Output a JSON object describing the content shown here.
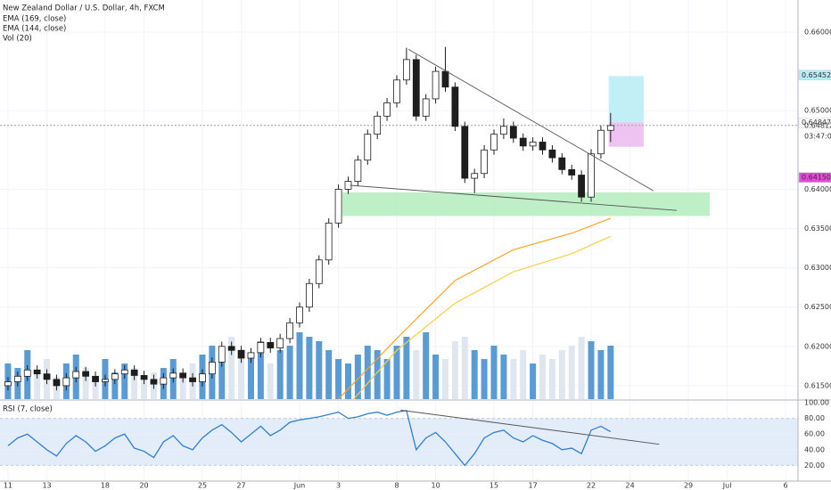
{
  "chart_data": [
    {
      "type": "candlestick",
      "title": "New Zealand Dollar / U.S. Dollar, 4h, FXCM",
      "indicators": [
        "Vol (20)"
      ],
      "x": [
        0,
        0.5,
        1,
        1.5,
        2,
        2.5,
        3,
        3.5,
        4,
        4.5,
        5,
        5.5,
        6,
        6.5,
        7,
        7.5,
        8,
        8.5,
        9,
        9.5,
        10,
        10.5,
        11,
        11.5,
        12,
        12.5,
        13,
        13.5,
        14,
        14.5,
        15,
        15.5,
        16,
        16.5,
        17,
        17.5,
        18,
        18.5,
        19,
        19.5,
        20,
        20.5,
        21,
        21.5,
        22,
        22.5,
        23,
        23.5,
        24,
        24.5,
        25,
        25.5,
        26,
        26.5,
        27,
        27.5,
        28,
        28.5,
        29,
        29.5,
        30,
        30.5,
        31
      ],
      "open": [
        0.615,
        0.6155,
        0.6162,
        0.617,
        0.6165,
        0.6158,
        0.615,
        0.616,
        0.6168,
        0.6162,
        0.6155,
        0.6158,
        0.6165,
        0.617,
        0.6163,
        0.6158,
        0.6152,
        0.616,
        0.6166,
        0.616,
        0.6155,
        0.6165,
        0.618,
        0.62,
        0.6195,
        0.6185,
        0.6192,
        0.6205,
        0.6198,
        0.621,
        0.623,
        0.625,
        0.628,
        0.631,
        0.6357,
        0.64,
        0.641,
        0.6437,
        0.647,
        0.6493,
        0.651,
        0.6539,
        0.6565,
        0.6493,
        0.6515,
        0.655,
        0.653,
        0.648,
        0.6414,
        0.642,
        0.645,
        0.647,
        0.648,
        0.6465,
        0.6455,
        0.646,
        0.645,
        0.644,
        0.6425,
        0.6418,
        0.639,
        0.6445,
        0.6475
      ],
      "high": [
        0.6161,
        0.6168,
        0.6176,
        0.6176,
        0.6171,
        0.6164,
        0.6166,
        0.6174,
        0.6174,
        0.6168,
        0.6164,
        0.6171,
        0.6176,
        0.6176,
        0.6169,
        0.6164,
        0.6166,
        0.6172,
        0.6172,
        0.6166,
        0.6171,
        0.6186,
        0.6206,
        0.6206,
        0.6201,
        0.6198,
        0.6211,
        0.6211,
        0.6216,
        0.6236,
        0.6256,
        0.6286,
        0.6316,
        0.6363,
        0.6406,
        0.6416,
        0.6443,
        0.6476,
        0.6499,
        0.6516,
        0.6545,
        0.658,
        0.6571,
        0.6521,
        0.6556,
        0.6581,
        0.6536,
        0.6486,
        0.6426,
        0.6456,
        0.6476,
        0.649,
        0.6486,
        0.6471,
        0.6466,
        0.6466,
        0.6456,
        0.6446,
        0.6431,
        0.6424,
        0.6451,
        0.6481,
        0.6497
      ],
      "low": [
        0.6144,
        0.6149,
        0.6156,
        0.6159,
        0.6152,
        0.6144,
        0.6144,
        0.6154,
        0.6156,
        0.6149,
        0.6149,
        0.6152,
        0.6159,
        0.6157,
        0.6152,
        0.6146,
        0.6146,
        0.6154,
        0.6154,
        0.6149,
        0.6149,
        0.6159,
        0.6174,
        0.6189,
        0.6179,
        0.6179,
        0.6186,
        0.6192,
        0.6192,
        0.6204,
        0.6224,
        0.6244,
        0.6274,
        0.6304,
        0.6351,
        0.6394,
        0.6404,
        0.6431,
        0.6464,
        0.6487,
        0.6504,
        0.6533,
        0.6487,
        0.6487,
        0.6509,
        0.6524,
        0.6474,
        0.6408,
        0.6395,
        0.6414,
        0.6444,
        0.6464,
        0.6459,
        0.6449,
        0.6449,
        0.6444,
        0.6434,
        0.6419,
        0.6412,
        0.6384,
        0.6384,
        0.6439,
        0.646
      ],
      "close": [
        0.6155,
        0.6162,
        0.617,
        0.6165,
        0.6158,
        0.615,
        0.616,
        0.6168,
        0.6162,
        0.6155,
        0.6158,
        0.6165,
        0.617,
        0.6163,
        0.6158,
        0.6152,
        0.616,
        0.6166,
        0.616,
        0.6155,
        0.6165,
        0.618,
        0.62,
        0.6195,
        0.6185,
        0.6192,
        0.6205,
        0.6198,
        0.621,
        0.623,
        0.625,
        0.628,
        0.631,
        0.6357,
        0.64,
        0.641,
        0.6437,
        0.647,
        0.6493,
        0.651,
        0.6539,
        0.6565,
        0.6493,
        0.6515,
        0.655,
        0.653,
        0.648,
        0.6414,
        0.642,
        0.645,
        0.647,
        0.648,
        0.6465,
        0.6455,
        0.646,
        0.645,
        0.644,
        0.6425,
        0.6418,
        0.639,
        0.6445,
        0.6475,
        0.6481
      ],
      "volume": [
        40,
        35,
        55,
        30,
        45,
        25,
        40,
        50,
        35,
        20,
        45,
        30,
        40,
        35,
        25,
        30,
        35,
        45,
        30,
        40,
        50,
        60,
        55,
        70,
        45,
        50,
        65,
        40,
        55,
        60,
        75,
        70,
        65,
        55,
        45,
        40,
        50,
        60,
        55,
        45,
        60,
        70,
        55,
        75,
        50,
        45,
        65,
        70,
        55,
        45,
        60,
        50,
        45,
        55,
        40,
        50,
        45,
        55,
        60,
        70,
        65,
        55,
        60
      ],
      "up_color": "#ffffff",
      "down_color": "#1e1e1e",
      "volume_up_color": "#5b9bd5",
      "volume_down_color": "#dfe6ef",
      "series": [
        {
          "name": "EMA (169, close)",
          "color": "#f7cf48",
          "x": [
            17.5,
            20,
            23,
            26,
            29,
            31
          ],
          "values": [
            0.6125,
            0.6195,
            0.6255,
            0.6295,
            0.6318,
            0.634
          ]
        },
        {
          "name": "EMA (144, close)",
          "color": "#f5a623",
          "x": [
            17,
            20,
            23,
            26,
            29,
            31
          ],
          "values": [
            0.6133,
            0.621,
            0.6284,
            0.6323,
            0.6344,
            0.6363
          ]
        }
      ],
      "zones": [
        {
          "x": [
            17.2,
            36.1
          ],
          "y": [
            0.6366,
            0.6396
          ],
          "color": "#b4ecbd"
        },
        {
          "x": [
            30.9,
            32.7
          ],
          "y": [
            0.6485,
            0.6544
          ],
          "color": "#b7ebf5"
        },
        {
          "x": [
            30.9,
            32.7
          ],
          "y": [
            0.6454,
            0.6485
          ],
          "color": "#ebb8ef"
        }
      ],
      "trendlines": [
        {
          "x": [
            20.6,
            33.2
          ],
          "y": [
            0.6578,
            0.6398
          ]
        },
        {
          "x": [
            17.6,
            34.4
          ],
          "y": [
            0.6405,
            0.6373
          ]
        }
      ],
      "price_labels": [
        {
          "value": 0.65452,
          "label": "0.65452",
          "color": "#b7ebf5"
        },
        {
          "value": 0.64847,
          "label": "0.64847",
          "color": "#ffffff"
        },
        {
          "value": 0.6415,
          "label": "0.64150",
          "color": "#e64ad8"
        }
      ],
      "current_price": {
        "value": 0.64812,
        "label": "0.64812",
        "countdown": "03:47:00"
      },
      "xlim": [
        -0.41,
        40.64
      ],
      "xticks": [
        {
          "value": 0,
          "label": "11"
        },
        {
          "value": 2,
          "label": "13"
        },
        {
          "value": 5,
          "label": "18"
        },
        {
          "value": 7,
          "label": "20"
        },
        {
          "value": 10,
          "label": "25"
        },
        {
          "value": 12,
          "label": "27"
        },
        {
          "value": 15,
          "label": "Jun"
        },
        {
          "value": 17,
          "label": "3"
        },
        {
          "value": 20,
          "label": "8"
        },
        {
          "value": 22,
          "label": "10"
        },
        {
          "value": 25,
          "label": "15"
        },
        {
          "value": 27,
          "label": "17"
        },
        {
          "value": 30,
          "label": "22"
        },
        {
          "value": 32,
          "label": "24"
        },
        {
          "value": 35,
          "label": "29"
        },
        {
          "value": 37,
          "label": "Jul"
        },
        {
          "value": 40,
          "label": "6"
        }
      ],
      "ylim": [
        0.61329,
        0.66408
      ],
      "yticks": [
        {
          "value": 0.615,
          "label": "0.61500"
        },
        {
          "value": 0.62,
          "label": "0.62000"
        },
        {
          "value": 0.625,
          "label": "0.62500"
        },
        {
          "value": 0.63,
          "label": "0.63000"
        },
        {
          "value": 0.635,
          "label": "0.63500"
        },
        {
          "value": 0.64,
          "label": "0.64000"
        },
        {
          "value": 0.65,
          "label": "0.65000"
        },
        {
          "value": 0.66,
          "label": "0.66000"
        }
      ],
      "grid": true
    },
    {
      "type": "line",
      "title": "RSI (7, close)",
      "x": [
        0,
        0.5,
        1,
        1.5,
        2,
        2.5,
        3,
        3.5,
        4,
        4.5,
        5,
        5.5,
        6,
        6.5,
        7,
        7.5,
        8,
        8.5,
        9,
        9.5,
        10,
        10.5,
        11,
        11.5,
        12,
        12.5,
        13,
        13.5,
        14,
        14.5,
        15,
        15.5,
        16,
        16.5,
        17,
        17.5,
        18,
        18.5,
        19,
        19.5,
        20,
        20.5,
        21,
        21.5,
        22,
        22.5,
        23,
        23.5,
        24,
        24.5,
        25,
        25.5,
        26,
        26.5,
        27,
        27.5,
        28,
        28.5,
        29,
        29.5,
        30,
        30.5,
        31
      ],
      "values": [
        45,
        55,
        60,
        50,
        40,
        32,
        48,
        58,
        50,
        38,
        45,
        55,
        60,
        42,
        38,
        30,
        50,
        58,
        45,
        40,
        55,
        65,
        72,
        62,
        50,
        60,
        70,
        58,
        65,
        75,
        78,
        80,
        82,
        85,
        88,
        80,
        82,
        86,
        88,
        84,
        88,
        90,
        40,
        55,
        62,
        50,
        35,
        20,
        35,
        55,
        62,
        65,
        55,
        50,
        58,
        52,
        48,
        40,
        42,
        35,
        65,
        70,
        63
      ],
      "color": "#2f7fd2",
      "band": [
        20,
        80
      ],
      "band_color": "#e3ecf9",
      "trendlines": [
        {
          "x": [
            20.2,
            33.5
          ],
          "y": [
            90.5,
            47
          ]
        }
      ],
      "ylim": [
        0,
        102.3
      ],
      "yticks": [
        {
          "value": 20,
          "label": "20.00"
        },
        {
          "value": 40,
          "label": "40.00"
        },
        {
          "value": 60,
          "label": "60.00"
        },
        {
          "value": 80,
          "label": "80.00"
        },
        {
          "value": 100,
          "label": "100.00"
        }
      ],
      "grid": true
    }
  ]
}
